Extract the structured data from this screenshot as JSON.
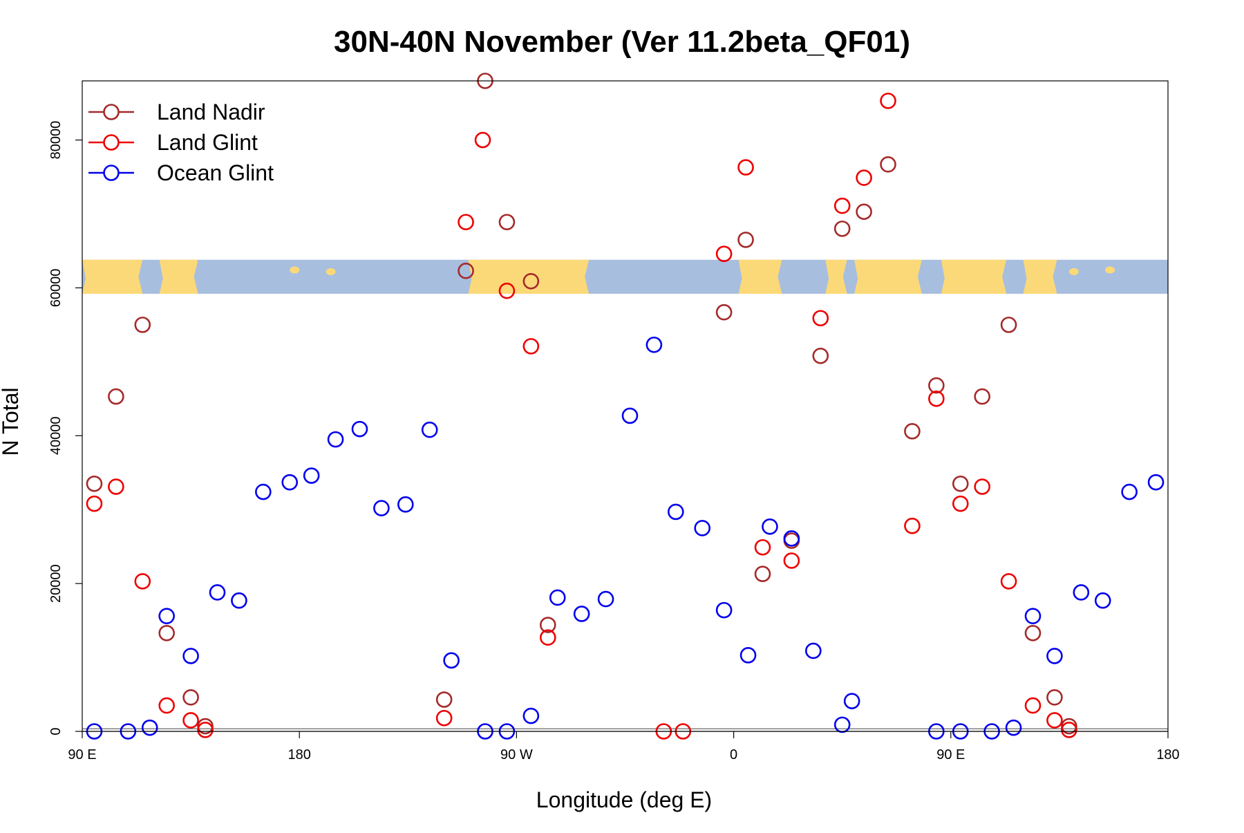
{
  "chart_data": {
    "type": "scatter",
    "title": "30N-40N November (Ver 11.2beta_QF01)",
    "xlabel": "Longitude (deg E)",
    "ylabel": "N Total",
    "xlim": [
      90,
      540
    ],
    "ylim": [
      0,
      88000
    ],
    "x_ticks": [
      {
        "value": 90,
        "label": "90 E"
      },
      {
        "value": 180,
        "label": "180"
      },
      {
        "value": 270,
        "label": "90 W"
      },
      {
        "value": 360,
        "label": "0"
      },
      {
        "value": 450,
        "label": "90 E"
      },
      {
        "value": 540,
        "label": "180"
      }
    ],
    "y_ticks": [
      {
        "value": 0,
        "label": "0"
      },
      {
        "value": 20000,
        "label": "20000"
      },
      {
        "value": 40000,
        "label": "40000"
      },
      {
        "value": 60000,
        "label": "60000"
      },
      {
        "value": 80000,
        "label": "80000"
      }
    ],
    "map_strip": {
      "y_range": [
        59200,
        63800
      ],
      "description": "world map strip 30N-40N"
    },
    "legend_position": "top-left",
    "series": [
      {
        "name": "Land Nadir",
        "color": "#a52a2a",
        "points": [
          [
            95,
            33500
          ],
          [
            104,
            45300
          ],
          [
            115,
            55000
          ],
          [
            125,
            13300
          ],
          [
            135,
            4600
          ],
          [
            141,
            700
          ],
          [
            240,
            4300
          ],
          [
            249,
            62300
          ],
          [
            257,
            88000
          ],
          [
            266,
            68900
          ],
          [
            276,
            60900
          ],
          [
            283,
            14400
          ],
          [
            356,
            56700
          ],
          [
            365,
            66500
          ],
          [
            372,
            21300
          ],
          [
            384,
            25800
          ],
          [
            396,
            50800
          ],
          [
            405,
            68000
          ],
          [
            414,
            70300
          ],
          [
            424,
            76700
          ],
          [
            434,
            40600
          ],
          [
            444,
            46800
          ],
          [
            454,
            33500
          ],
          [
            463,
            45300
          ],
          [
            474,
            55000
          ],
          [
            484,
            13300
          ],
          [
            493,
            4600
          ],
          [
            499,
            700
          ]
        ]
      },
      {
        "name": "Land Glint",
        "color": "#ee0000",
        "points": [
          [
            95,
            30800
          ],
          [
            104,
            33100
          ],
          [
            115,
            20300
          ],
          [
            125,
            3500
          ],
          [
            135,
            1500
          ],
          [
            141,
            200
          ],
          [
            240,
            1800
          ],
          [
            249,
            68900
          ],
          [
            256,
            80000
          ],
          [
            266,
            59600
          ],
          [
            276,
            52100
          ],
          [
            283,
            12700
          ],
          [
            331,
            0
          ],
          [
            339,
            0
          ],
          [
            356,
            64600
          ],
          [
            365,
            76300
          ],
          [
            372,
            24900
          ],
          [
            384,
            23100
          ],
          [
            396,
            55900
          ],
          [
            405,
            71100
          ],
          [
            414,
            74900
          ],
          [
            424,
            85300
          ],
          [
            434,
            27800
          ],
          [
            444,
            45000
          ],
          [
            454,
            30800
          ],
          [
            463,
            33100
          ],
          [
            474,
            20300
          ],
          [
            484,
            3500
          ],
          [
            493,
            1500
          ],
          [
            499,
            200
          ]
        ]
      },
      {
        "name": "Ocean Glint",
        "color": "#0000ee",
        "points": [
          [
            95,
            0
          ],
          [
            109,
            0
          ],
          [
            118,
            500
          ],
          [
            125,
            15600
          ],
          [
            135,
            10200
          ],
          [
            146,
            18800
          ],
          [
            155,
            17700
          ],
          [
            165,
            32400
          ],
          [
            176,
            33700
          ],
          [
            185,
            34600
          ],
          [
            195,
            39500
          ],
          [
            205,
            40900
          ],
          [
            214,
            30200
          ],
          [
            224,
            30700
          ],
          [
            234,
            40800
          ],
          [
            243,
            9600
          ],
          [
            257,
            0
          ],
          [
            266,
            0
          ],
          [
            276,
            2100
          ],
          [
            287,
            18100
          ],
          [
            297,
            15900
          ],
          [
            307,
            17900
          ],
          [
            317,
            42700
          ],
          [
            327,
            52300
          ],
          [
            336,
            29700
          ],
          [
            347,
            27500
          ],
          [
            356,
            16400
          ],
          [
            366,
            10300
          ],
          [
            375,
            27700
          ],
          [
            384,
            26100
          ],
          [
            393,
            10900
          ],
          [
            405,
            900
          ],
          [
            409,
            4100
          ],
          [
            444,
            0
          ],
          [
            454,
            0
          ],
          [
            467,
            0
          ],
          [
            476,
            500
          ],
          [
            484,
            15600
          ],
          [
            493,
            10200
          ],
          [
            504,
            18800
          ],
          [
            513,
            17700
          ],
          [
            524,
            32400
          ],
          [
            535,
            33700
          ]
        ]
      }
    ]
  }
}
